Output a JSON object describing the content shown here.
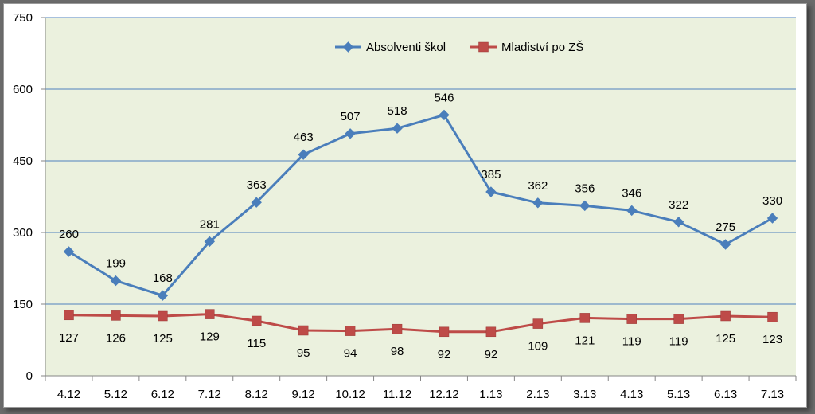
{
  "chart_data": {
    "type": "line",
    "categories": [
      "4.12",
      "5.12",
      "6.12",
      "7.12",
      "8.12",
      "9.12",
      "10.12",
      "11.12",
      "12.12",
      "1.13",
      "2.13",
      "3.13",
      "4.13",
      "5.13",
      "6.13",
      "7.13"
    ],
    "series": [
      {
        "name": "Absolventi škol",
        "color": "#4a7ebb",
        "marker": "diamond",
        "label_position": "above",
        "values": [
          260,
          199,
          168,
          281,
          363,
          463,
          507,
          518,
          546,
          385,
          362,
          356,
          346,
          322,
          275,
          330
        ]
      },
      {
        "name": "Mladiství po ZŠ",
        "color": "#be4b48",
        "marker": "square",
        "label_position": "below",
        "values": [
          127,
          126,
          125,
          129,
          115,
          95,
          94,
          98,
          92,
          92,
          109,
          121,
          119,
          119,
          125,
          123
        ]
      }
    ],
    "yticks": [
      0,
      150,
      300,
      450,
      600,
      750
    ],
    "ylim": [
      0,
      750
    ],
    "grid": true,
    "legend": "top-center",
    "plot_background": "#ebf1de",
    "gridline_color": "#4f81bd"
  }
}
